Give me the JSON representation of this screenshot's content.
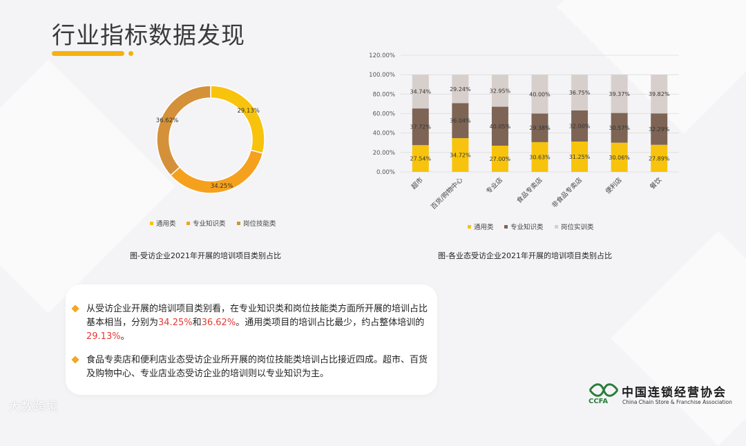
{
  "page": {
    "title": "行业指标数据发现",
    "caption_left": "图-受访企业2021年开展的培训项目类别占比",
    "caption_right": "图-各业态受访企业2021年开展的培训项目类别占比",
    "accent_color": "#f5b20c"
  },
  "chart_data": [
    {
      "type": "pie",
      "subtype": "donut",
      "labels": [
        "通用类",
        "专业知识类",
        "岗位技能类"
      ],
      "values": [
        29.13,
        34.25,
        36.62
      ],
      "value_labels": [
        "29.13%",
        "34.25%",
        "36.62%"
      ],
      "colors": [
        "#f7c30c",
        "#f5a11e",
        "#d4913a"
      ],
      "legend": "bottom"
    },
    {
      "type": "bar",
      "subtype": "stacked",
      "categories": [
        "超市",
        "百货/购物中心",
        "专业店",
        "食品专卖店",
        "非食品专卖店",
        "便利店",
        "餐饮"
      ],
      "series": [
        {
          "name": "通用类",
          "color": "#f7c30c",
          "values": [
            27.54,
            34.72,
            27.0,
            30.63,
            31.25,
            30.06,
            27.89
          ],
          "labels": [
            "27.54%",
            "34.72%",
            "27.00%",
            "30.63%",
            "31.25%",
            "30.06%",
            "27.89%"
          ]
        },
        {
          "name": "专业知识类",
          "color": "#7d6455",
          "values": [
            37.72,
            36.04,
            40.05,
            29.38,
            32.0,
            30.57,
            32.29
          ],
          "labels": [
            "37.72%",
            "36.04%",
            "40.05%",
            "29.38%",
            "32.00%",
            "30.57%",
            "32.29%"
          ]
        },
        {
          "name": "岗位实训类",
          "color": "#d7cfcb",
          "values": [
            34.74,
            29.24,
            32.95,
            40.0,
            36.75,
            39.37,
            39.82
          ],
          "labels": [
            "34.74%",
            "29.24%",
            "32.95%",
            "40.00%",
            "36.75%",
            "39.37%",
            "39.82%"
          ]
        }
      ],
      "yticks": [
        "0.00%",
        "20.00%",
        "40.00%",
        "60.00%",
        "80.00%",
        "100.00%",
        "120.00%"
      ],
      "ylim": [
        0,
        120
      ],
      "grid": true,
      "legend": "bottom"
    }
  ],
  "summary": {
    "b1_p1": "从受访企业开展的培训项目类别看，在专业知识类和岗位技能类方面所开展的培训占比基本相当，分别为",
    "b1_v1": "34.25%",
    "b1_and": "和",
    "b1_v2": "36.62%",
    "b1_p2": "。通用类项目的培训占比最少，约占整体培训的",
    "b1_v3": "29.13%",
    "b1_end": "。",
    "b2": "食品专卖店和便利店业态受访企业所开展的岗位技能类培训占比接近四成。超市、百货及购物中心、专业店业态受访企业的培训则以专业知识为主。"
  },
  "footer": {
    "logo_cn": "中国连锁经营协会",
    "logo_en": "China Chain Store & Franchise Association",
    "logo_abbr": "CCFA",
    "watermark": "大数跨境"
  }
}
